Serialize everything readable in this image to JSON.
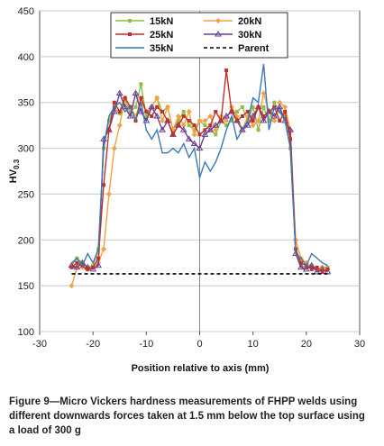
{
  "caption": "Figure 9—Micro Vickers hardness measurements of FHPP welds using different downwards forces taken at 1.5 mm below the top surface using a load of 300 g",
  "chart_data": {
    "type": "line",
    "xlabel": "Position relative to axis (mm)",
    "ylabel_main": "HV",
    "ylabel_sub": "0.3",
    "xlim": [
      -30,
      30
    ],
    "ylim": [
      100,
      450
    ],
    "xticks": [
      -30,
      -20,
      -10,
      0,
      10,
      20,
      30
    ],
    "yticks": [
      100,
      150,
      200,
      250,
      300,
      350,
      400,
      450
    ],
    "grid": "horizontal",
    "legend_position": "top-center",
    "series": [
      {
        "name": "15kN",
        "color": "#8fbe45",
        "marker": "square",
        "x": [
          -24,
          -23,
          -22,
          -21,
          -20,
          -19,
          -18,
          -17,
          -16,
          -15,
          -14,
          -13,
          -12,
          -11,
          -10,
          -9,
          -8,
          -7,
          -6,
          -5,
          -4,
          -3,
          -2,
          -1,
          0,
          1,
          2,
          3,
          4,
          5,
          6,
          7,
          8,
          9,
          10,
          11,
          12,
          13,
          14,
          15,
          16,
          17,
          18,
          19,
          20,
          21,
          22,
          23,
          24
        ],
        "y": [
          172,
          180,
          175,
          170,
          172,
          190,
          300,
          330,
          345,
          338,
          352,
          340,
          345,
          370,
          335,
          345,
          355,
          340,
          345,
          320,
          330,
          340,
          325,
          320,
          330,
          325,
          320,
          315,
          330,
          325,
          330,
          340,
          345,
          330,
          345,
          320,
          345,
          330,
          350,
          340,
          335,
          300,
          190,
          172,
          170,
          172,
          168,
          170,
          170
        ]
      },
      {
        "name": "20kN",
        "color": "#f5a044",
        "marker": "diamond",
        "x": [
          -24,
          -23,
          -22,
          -21,
          -20,
          -19,
          -18,
          -17,
          -16,
          -15,
          -14,
          -13,
          -12,
          -11,
          -10,
          -9,
          -8,
          -7,
          -6,
          -5,
          -4,
          -3,
          -2,
          -1,
          0,
          1,
          2,
          3,
          4,
          5,
          6,
          7,
          8,
          9,
          10,
          11,
          12,
          13,
          14,
          15,
          16,
          17,
          18,
          19,
          20,
          21,
          22,
          23,
          24
        ],
        "y": [
          150,
          170,
          170,
          168,
          170,
          175,
          190,
          250,
          300,
          325,
          355,
          345,
          335,
          350,
          340,
          345,
          355,
          330,
          345,
          320,
          335,
          325,
          340,
          315,
          330,
          330,
          335,
          320,
          335,
          330,
          345,
          335,
          320,
          335,
          325,
          330,
          360,
          340,
          330,
          350,
          345,
          320,
          200,
          180,
          175,
          170,
          168,
          170,
          168
        ]
      },
      {
        "name": "25kN",
        "color": "#c0302c",
        "marker": "square",
        "x": [
          -24,
          -23,
          -22,
          -21,
          -20,
          -19,
          -18,
          -17,
          -16,
          -15,
          -14,
          -13,
          -12,
          -11,
          -10,
          -9,
          -8,
          -7,
          -6,
          -5,
          -4,
          -3,
          -2,
          -1,
          0,
          1,
          2,
          3,
          4,
          5,
          6,
          7,
          8,
          9,
          10,
          11,
          12,
          13,
          14,
          15,
          16,
          17,
          18,
          19,
          20,
          21,
          22,
          23,
          24
        ],
        "y": [
          170,
          175,
          172,
          168,
          170,
          180,
          260,
          320,
          350,
          340,
          355,
          345,
          330,
          355,
          340,
          335,
          345,
          340,
          330,
          315,
          325,
          335,
          330,
          325,
          315,
          320,
          325,
          340,
          330,
          385,
          340,
          330,
          335,
          340,
          330,
          345,
          335,
          340,
          345,
          330,
          340,
          310,
          190,
          175,
          172,
          168,
          170,
          165,
          168
        ]
      },
      {
        "name": "30kN",
        "color": "#6b3d95",
        "marker": "triangle",
        "x": [
          -24,
          -23,
          -22,
          -21,
          -20,
          -19,
          -18,
          -17,
          -16,
          -15,
          -14,
          -13,
          -12,
          -11,
          -10,
          -9,
          -8,
          -7,
          -6,
          -5,
          -4,
          -3,
          -2,
          -1,
          0,
          1,
          2,
          3,
          4,
          5,
          6,
          7,
          8,
          9,
          10,
          11,
          12,
          13,
          14,
          15,
          16,
          17,
          18,
          19,
          20,
          21,
          22,
          23,
          24
        ],
        "y": [
          172,
          170,
          175,
          170,
          168,
          172,
          310,
          320,
          340,
          360,
          345,
          335,
          360,
          340,
          330,
          345,
          335,
          320,
          330,
          315,
          325,
          320,
          310,
          305,
          300,
          315,
          320,
          325,
          330,
          335,
          340,
          330,
          320,
          325,
          335,
          345,
          330,
          340,
          335,
          345,
          330,
          320,
          185,
          170,
          168,
          172,
          165,
          168,
          165
        ]
      },
      {
        "name": "35kN",
        "color": "#3a78b8",
        "marker": "none",
        "x": [
          -24,
          -23,
          -22,
          -21,
          -20,
          -19,
          -18,
          -17,
          -16,
          -15,
          -14,
          -13,
          -12,
          -11,
          -10,
          -9,
          -8,
          -7,
          -6,
          -5,
          -4,
          -3,
          -2,
          -1,
          0,
          1,
          2,
          3,
          4,
          5,
          6,
          7,
          8,
          9,
          10,
          11,
          12,
          13,
          14,
          15,
          16,
          17,
          18,
          19,
          20,
          21,
          22,
          23,
          24
        ],
        "y": [
          175,
          180,
          172,
          185,
          175,
          190,
          300,
          335,
          345,
          350,
          340,
          345,
          330,
          350,
          320,
          310,
          320,
          295,
          295,
          300,
          295,
          305,
          290,
          300,
          268,
          285,
          275,
          285,
          300,
          320,
          335,
          310,
          320,
          330,
          355,
          350,
          392,
          320,
          345,
          340,
          330,
          300,
          185,
          180,
          172,
          185,
          180,
          175,
          172
        ]
      },
      {
        "name": "Parent",
        "color": "#000000",
        "marker": "none",
        "dash": true,
        "x": [
          -24,
          24
        ],
        "y": [
          163,
          163
        ]
      }
    ]
  }
}
